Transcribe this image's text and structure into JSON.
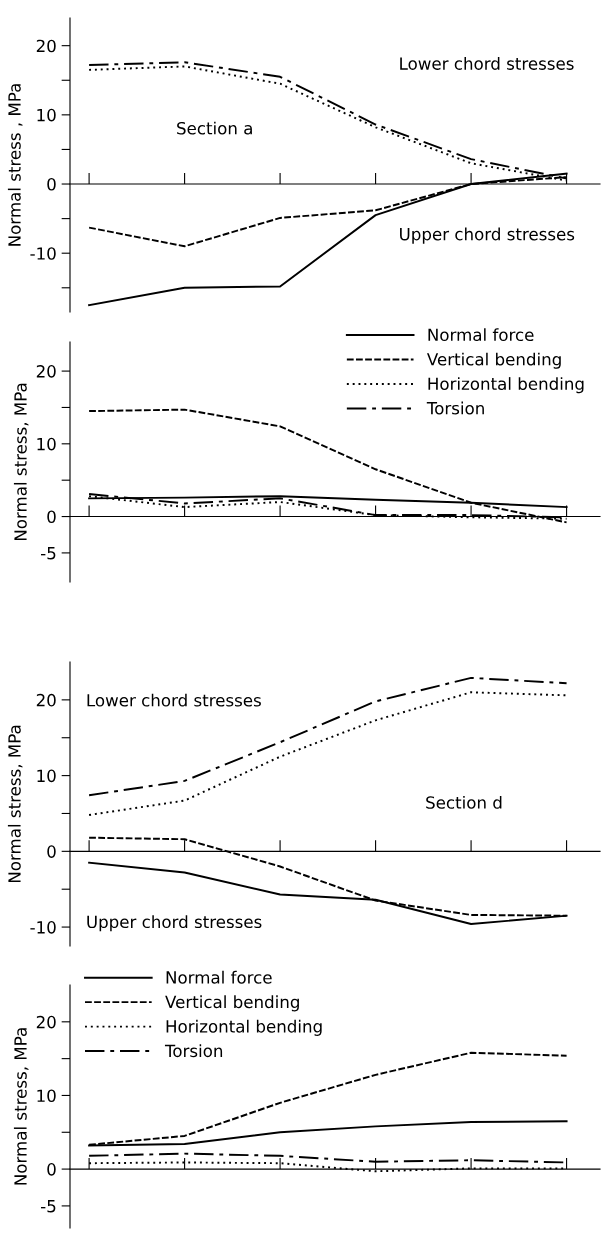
{
  "chart_data": [
    {
      "type": "line",
      "ylabel": "Normal stress , MPa",
      "categories": [
        null,
        null,
        null,
        null,
        null,
        null
      ],
      "ylim": [
        -18.5,
        24
      ],
      "yticks": [
        {
          "value": -15,
          "label": null
        },
        -10,
        {
          "value": -5,
          "label": null
        },
        0,
        {
          "value": 5,
          "label": null
        },
        10,
        {
          "value": 15,
          "label": null
        },
        20
      ],
      "tick_labels": "y",
      "annotations": [
        "Lower chord stresses",
        "Section a",
        "Upper chord stresses"
      ],
      "series": [
        {
          "color": "#000000",
          "line_style": "solid",
          "values": [
            -17.5,
            -15,
            -14.8,
            -4.5,
            0,
            1.5
          ]
        },
        {
          "color": "#000000",
          "line_style": "dashed",
          "values": [
            -6.3,
            -9,
            -4.9,
            -3.8,
            0,
            1.0
          ]
        },
        {
          "color": "#000000",
          "line_style": "dotted",
          "values": [
            16.5,
            17,
            14.5,
            8.2,
            3,
            0.5
          ]
        },
        {
          "color": "#000000",
          "line_style": "dashdot",
          "values": [
            17.2,
            17.6,
            15.5,
            8.6,
            3.6,
            0.8
          ]
        }
      ]
    },
    {
      "type": "line",
      "ylabel": "Normal stress, MPa",
      "categories": [
        null,
        null,
        null,
        null,
        null,
        null
      ],
      "ylim": [
        -9,
        24
      ],
      "yticks": [
        -5,
        0,
        {
          "value": 5,
          "label": null
        },
        10,
        {
          "value": 15,
          "label": null
        },
        20
      ],
      "tick_labels": "y",
      "legend": "top right",
      "series": [
        {
          "name": "Normal force",
          "color": "#000000",
          "line_style": "solid",
          "values": [
            2.5,
            2.6,
            2.8,
            2.3,
            1.9,
            1.3
          ]
        },
        {
          "name": "Vertical bending",
          "color": "#000000",
          "line_style": "dashed",
          "values": [
            14.5,
            14.7,
            12.4,
            6.5,
            1.9,
            -0.8
          ]
        },
        {
          "name": "Horizontal bending",
          "color": "#000000",
          "line_style": "dotted",
          "values": [
            2.8,
            1.3,
            2.0,
            0.2,
            -0.1,
            -0.3
          ]
        },
        {
          "name": "Torsion",
          "color": "#000000",
          "line_style": "dashdot",
          "values": [
            3.1,
            1.8,
            2.5,
            0.2,
            0.2,
            -0.1
          ]
        }
      ]
    },
    {
      "type": "line",
      "ylabel": "Normal stress, MPa",
      "categories": [
        null,
        null,
        null,
        null,
        null,
        null
      ],
      "ylim": [
        -12.5,
        25
      ],
      "yticks": [
        -10,
        {
          "value": -5,
          "label": null
        },
        0,
        {
          "value": 5,
          "label": null
        },
        10,
        {
          "value": 15,
          "label": null
        },
        20
      ],
      "tick_labels": "y",
      "annotations": [
        "Lower chord stresses",
        "Section d",
        "Upper chord stresses"
      ],
      "series": [
        {
          "color": "#000000",
          "line_style": "solid",
          "values": [
            -1.5,
            -2.8,
            -5.7,
            -6.4,
            -9.6,
            -8.5
          ]
        },
        {
          "color": "#000000",
          "line_style": "dashed",
          "values": [
            1.8,
            1.6,
            -2,
            -6.5,
            -8.4,
            -8.5
          ]
        },
        {
          "color": "#000000",
          "line_style": "dotted",
          "values": [
            4.8,
            6.7,
            12.5,
            17.3,
            21,
            20.6
          ]
        },
        {
          "color": "#000000",
          "line_style": "dashdot",
          "values": [
            7.4,
            9.3,
            14.4,
            19.8,
            22.9,
            22.2
          ]
        }
      ]
    },
    {
      "type": "line",
      "ylabel": "Normal stress, MPa",
      "categories": [
        null,
        null,
        null,
        null,
        null,
        null
      ],
      "ylim": [
        -8,
        25
      ],
      "yticks": [
        -5,
        0,
        {
          "value": 5,
          "label": null
        },
        10,
        {
          "value": 15,
          "label": null
        },
        20
      ],
      "tick_labels": "y",
      "legend": "top left",
      "series": [
        {
          "name": "Normal force",
          "color": "#000000",
          "line_style": "solid",
          "values": [
            3.2,
            3.4,
            5.0,
            5.8,
            6.4,
            6.5
          ]
        },
        {
          "name": "Vertical bending",
          "color": "#000000",
          "line_style": "dashed",
          "values": [
            3.3,
            4.5,
            9.0,
            12.8,
            15.8,
            15.4
          ]
        },
        {
          "name": "Horizontal bending",
          "color": "#000000",
          "line_style": "dotted",
          "values": [
            0.8,
            0.9,
            0.8,
            -0.3,
            0.1,
            0.1
          ]
        },
        {
          "name": "Torsion",
          "color": "#000000",
          "line_style": "dashdot",
          "values": [
            1.8,
            2.1,
            1.8,
            1.0,
            1.2,
            0.9
          ]
        }
      ]
    }
  ]
}
